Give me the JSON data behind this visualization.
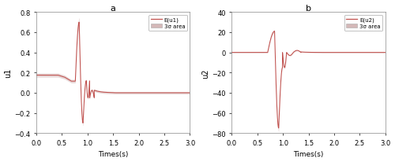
{
  "title_a": "a",
  "title_b": "b",
  "xlabel": "Times(s)",
  "ylabel_a": "u1",
  "ylabel_b": "u2",
  "xlim": [
    0,
    3
  ],
  "ylim_a": [
    -0.4,
    0.8
  ],
  "ylim_b": [
    -80,
    40
  ],
  "yticks_a": [
    -0.4,
    -0.2,
    0.0,
    0.2,
    0.4,
    0.6,
    0.8
  ],
  "yticks_b": [
    -80,
    -60,
    -40,
    -20,
    0,
    20,
    40
  ],
  "xticks": [
    0,
    0.5,
    1,
    1.5,
    2,
    2.5,
    3
  ],
  "line_color": "#c0504d",
  "fill_color": "#d4b8b8",
  "legend_line": "E(u1)",
  "legend_fill": "3σ area",
  "legend_line_b": "E(u2)",
  "legend_fill_b": "3σ area",
  "background_color": "#ffffff",
  "figsize": [
    5.0,
    2.07
  ],
  "dpi": 100
}
